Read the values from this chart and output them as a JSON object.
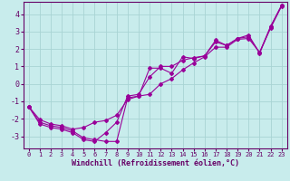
{
  "xlabel": "Windchill (Refroidissement éolien,°C)",
  "bg_color": "#c8ecec",
  "grid_color": "#a8d4d4",
  "line_color": "#990099",
  "xlim": [
    -0.5,
    23.5
  ],
  "ylim": [
    -3.7,
    4.7
  ],
  "yticks": [
    -3,
    -2,
    -1,
    0,
    1,
    2,
    3,
    4
  ],
  "xticks": [
    0,
    1,
    2,
    3,
    4,
    5,
    6,
    7,
    8,
    9,
    10,
    11,
    12,
    13,
    14,
    15,
    16,
    17,
    18,
    19,
    20,
    21,
    22,
    23
  ],
  "line1_x": [
    0,
    1,
    2,
    3,
    4,
    5,
    6,
    7,
    8,
    9,
    10,
    11,
    12,
    13,
    14,
    15,
    16,
    17,
    18,
    19,
    20,
    21,
    22,
    23
  ],
  "line1_y": [
    -1.3,
    -2.3,
    -2.5,
    -2.6,
    -2.8,
    -3.2,
    -3.3,
    -2.8,
    -2.2,
    -0.7,
    -0.6,
    0.4,
    1.0,
    1.0,
    1.35,
    1.5,
    1.6,
    2.4,
    2.2,
    2.6,
    2.7,
    1.8,
    3.3,
    4.5
  ],
  "line2_x": [
    0,
    1,
    2,
    3,
    4,
    5,
    6,
    7,
    8,
    9,
    10,
    11,
    12,
    13,
    14,
    15,
    16,
    17,
    18,
    19,
    20,
    21,
    22,
    23
  ],
  "line2_y": [
    -1.3,
    -2.2,
    -2.4,
    -2.5,
    -2.7,
    -3.1,
    -3.2,
    -3.3,
    -3.3,
    -0.8,
    -0.7,
    0.9,
    0.9,
    0.6,
    1.55,
    1.45,
    1.6,
    2.5,
    2.2,
    2.6,
    2.8,
    1.75,
    3.25,
    4.5
  ],
  "line3_x": [
    0,
    1,
    2,
    3,
    4,
    5,
    6,
    7,
    8,
    9,
    10,
    11,
    12,
    13,
    14,
    15,
    16,
    17,
    18,
    19,
    20,
    21,
    22,
    23
  ],
  "line3_y": [
    -1.3,
    -2.05,
    -2.3,
    -2.4,
    -2.6,
    -2.5,
    -2.2,
    -2.1,
    -1.8,
    -0.9,
    -0.7,
    -0.6,
    0.0,
    0.3,
    0.8,
    1.2,
    1.55,
    2.1,
    2.1,
    2.55,
    2.6,
    1.8,
    3.2,
    4.45
  ]
}
